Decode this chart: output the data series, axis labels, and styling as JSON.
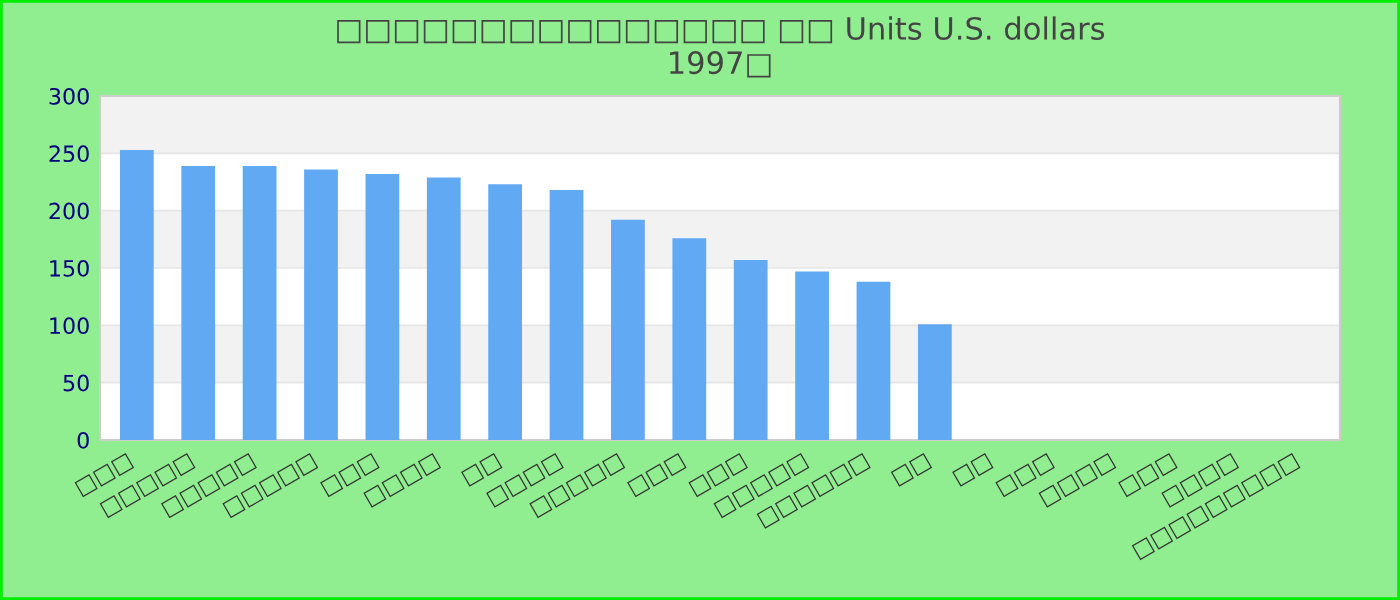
{
  "chart_data": {
    "type": "bar",
    "title": "□□□□□□□□□□□□□□□ □□ Units U.S. dollars\n1997□",
    "categories": [
      "□□□",
      "□□□□□",
      "□□□□□",
      "□□□□□",
      "□□□",
      "□□□□",
      "□□",
      "□□□□",
      "□□□□□",
      "□□□",
      "□□□",
      "□□□□□",
      "□□□□□□",
      "□□",
      "□□",
      "□□□",
      "□□□□",
      "□□□",
      "□□□□",
      "□□□□□□□□□"
    ],
    "values": [
      253,
      239,
      239,
      236,
      232,
      229,
      223,
      218,
      192,
      176,
      157,
      147,
      138,
      101,
      null,
      null,
      null,
      null,
      null,
      null
    ],
    "color": "#62a9f4",
    "ylim": [
      0,
      300
    ],
    "yticks": [
      0,
      50,
      100,
      150,
      200,
      250,
      300
    ],
    "grid": "y"
  }
}
